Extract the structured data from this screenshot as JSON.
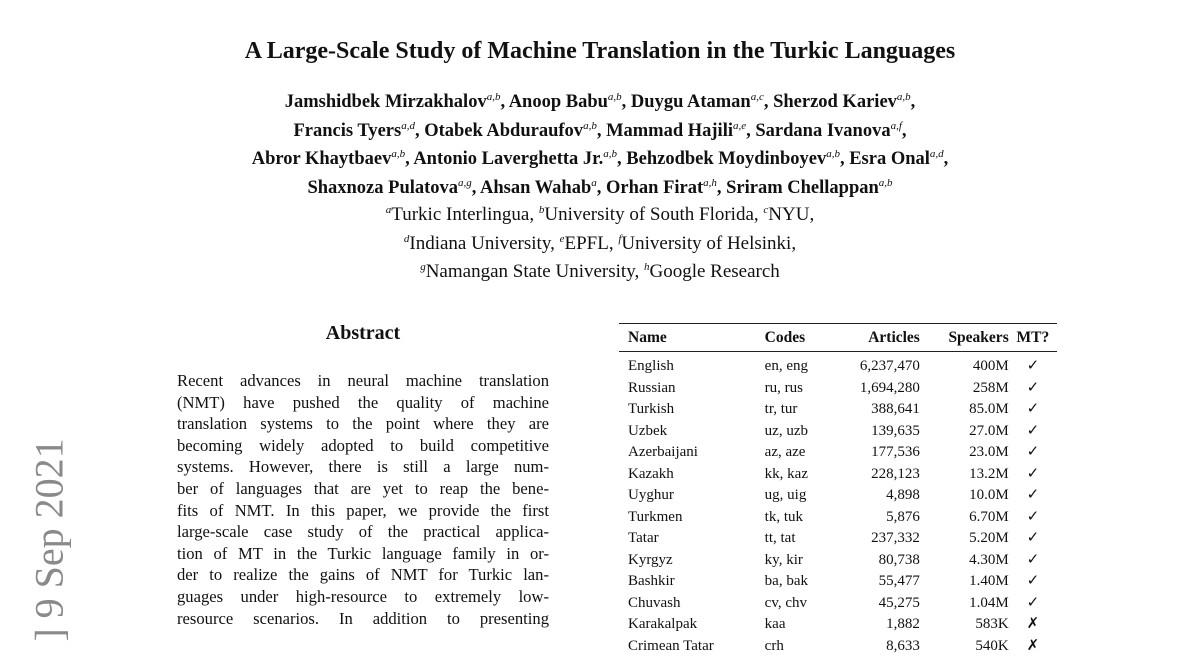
{
  "paper": {
    "title": "A Large-Scale Study of Machine Translation in the Turkic Languages",
    "author_lines": [
      [
        [
          "Jamshidbek Mirzakhalov",
          "a,b"
        ],
        [
          "Anoop Babu",
          "a,b"
        ],
        [
          "Duygu Ataman",
          "a,c"
        ],
        [
          "Sherzod Kariev",
          "a,b"
        ]
      ],
      [
        [
          "Francis Tyers",
          "a,d"
        ],
        [
          "Otabek Abduraufov",
          "a,b"
        ],
        [
          "Mammad Hajili",
          "a,e"
        ],
        [
          "Sardana Ivanova",
          "a,f"
        ]
      ],
      [
        [
          "Abror Khaytbaev",
          "a,b"
        ],
        [
          "Antonio Laverghetta Jr.",
          "a,b"
        ],
        [
          "Behzodbek Moydinboyev",
          "a,b"
        ],
        [
          "Esra Onal",
          "a,d"
        ]
      ],
      [
        [
          "Shaxnoza Pulatova",
          "a,g"
        ],
        [
          "Ahsan Wahab",
          "a"
        ],
        [
          "Orhan Firat",
          "a,h"
        ],
        [
          "Sriram Chellappan",
          "a,b"
        ]
      ]
    ],
    "affiliation_lines": [
      [
        [
          "a",
          "Turkic Interlingua"
        ],
        [
          "b",
          "University of South Florida"
        ],
        [
          "c",
          "NYU"
        ]
      ],
      [
        [
          "d",
          "Indiana University"
        ],
        [
          "e",
          "EPFL"
        ],
        [
          "f",
          "University of Helsinki"
        ]
      ],
      [
        [
          "g",
          "Namangan State University"
        ],
        [
          "h",
          "Google Research"
        ]
      ]
    ],
    "arxiv_stamp": "]  9 Sep 2021",
    "abstract": {
      "heading": "Abstract",
      "lines": [
        "Recent advances in neural machine translation",
        "(NMT) have pushed the quality of machine",
        "translation systems to the point where they are",
        "becoming widely adopted to build competitive",
        "systems.  However, there is still a large num-",
        "ber of languages that are yet to reap the bene-",
        "fits of NMT. In this paper, we provide the first",
        "large-scale case study of the practical applica-",
        "tion of MT in the Turkic language family in or-",
        "der to realize the gains of NMT for Turkic lan-",
        "guages under high-resource to extremely low-",
        "resource scenarios.  In addition to presenting"
      ]
    },
    "table": {
      "headers": [
        "Name",
        "Codes",
        "Articles",
        "Speakers",
        "MT?"
      ],
      "rows": [
        [
          "English",
          "en, eng",
          "6,237,470",
          "400M",
          "✓"
        ],
        [
          "Russian",
          "ru, rus",
          "1,694,280",
          "258M",
          "✓"
        ],
        [
          "Turkish",
          "tr, tur",
          "388,641",
          "85.0M",
          "✓"
        ],
        [
          "Uzbek",
          "uz, uzb",
          "139,635",
          "27.0M",
          "✓"
        ],
        [
          "Azerbaijani",
          "az, aze",
          "177,536",
          "23.0M",
          "✓"
        ],
        [
          "Kazakh",
          "kk, kaz",
          "228,123",
          "13.2M",
          "✓"
        ],
        [
          "Uyghur",
          "ug, uig",
          "4,898",
          "10.0M",
          "✓"
        ],
        [
          "Turkmen",
          "tk, tuk",
          "5,876",
          "6.70M",
          "✓"
        ],
        [
          "Tatar",
          "tt, tat",
          "237,332",
          "5.20M",
          "✓"
        ],
        [
          "Kyrgyz",
          "ky, kir",
          "80,738",
          "4.30M",
          "✓"
        ],
        [
          "Bashkir",
          "ba, bak",
          "55,477",
          "1.40M",
          "✓"
        ],
        [
          "Chuvash",
          "cv, chv",
          "45,275",
          "1.04M",
          "✓"
        ],
        [
          "Karakalpak",
          "kaa",
          "1,882",
          "583K",
          "✗"
        ],
        [
          "Crimean Tatar",
          "crh",
          "8,633",
          "540K",
          "✗"
        ]
      ]
    }
  }
}
